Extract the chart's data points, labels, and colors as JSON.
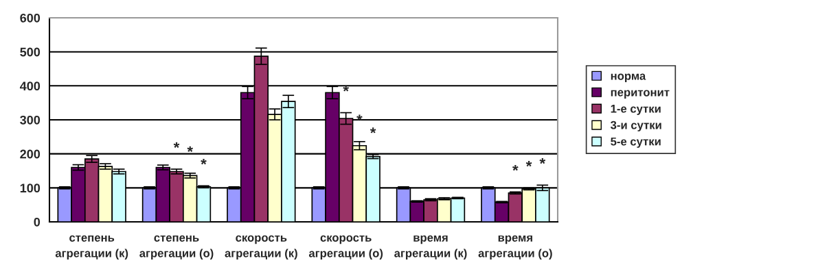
{
  "chart_data": {
    "type": "bar",
    "categories": [
      "степень\nагрегации (к)",
      "степень\nагрегации (о)",
      "скорость\nагрегации (к)",
      "скорость\nагрегации (о)",
      "время\nагрегации (к)",
      "время\nагрегации (о)"
    ],
    "series": [
      {
        "name": "норма",
        "color": "#9999ff",
        "values": [
          100,
          100,
          100,
          100,
          100,
          100
        ],
        "errors": [
          3,
          3,
          3,
          3,
          3,
          3
        ]
      },
      {
        "name": "перитонит",
        "color": "#660066",
        "values": [
          160,
          160,
          380,
          380,
          60,
          58
        ],
        "errors": [
          8,
          7,
          18,
          18,
          2,
          2
        ]
      },
      {
        "name": "1-е сутки",
        "color": "#993366",
        "values": [
          185,
          148,
          487,
          304,
          65,
          85
        ],
        "errors": [
          10,
          7,
          24,
          17,
          3,
          3
        ],
        "value_labels": [
          null,
          "*",
          null,
          "*",
          null,
          "*"
        ]
      },
      {
        "name": "3-и сутки",
        "color": "#ffffcc",
        "values": [
          163,
          136,
          316,
          224,
          68,
          97
        ],
        "errors": [
          8,
          7,
          16,
          12,
          3,
          3
        ],
        "value_labels": [
          null,
          "*",
          null,
          "*",
          null,
          "*"
        ]
      },
      {
        "name": "5-е сутки",
        "color": "#ccffff",
        "values": [
          148,
          103,
          354,
          192,
          70,
          100
        ],
        "errors": [
          7,
          3,
          18,
          6,
          2,
          8
        ],
        "value_labels": [
          null,
          "*",
          null,
          "*",
          null,
          "*"
        ]
      }
    ],
    "ylim": [
      0,
      600
    ],
    "yticks": [
      0,
      100,
      200,
      300,
      400,
      500,
      600
    ],
    "grid": "y",
    "legend": "right"
  }
}
